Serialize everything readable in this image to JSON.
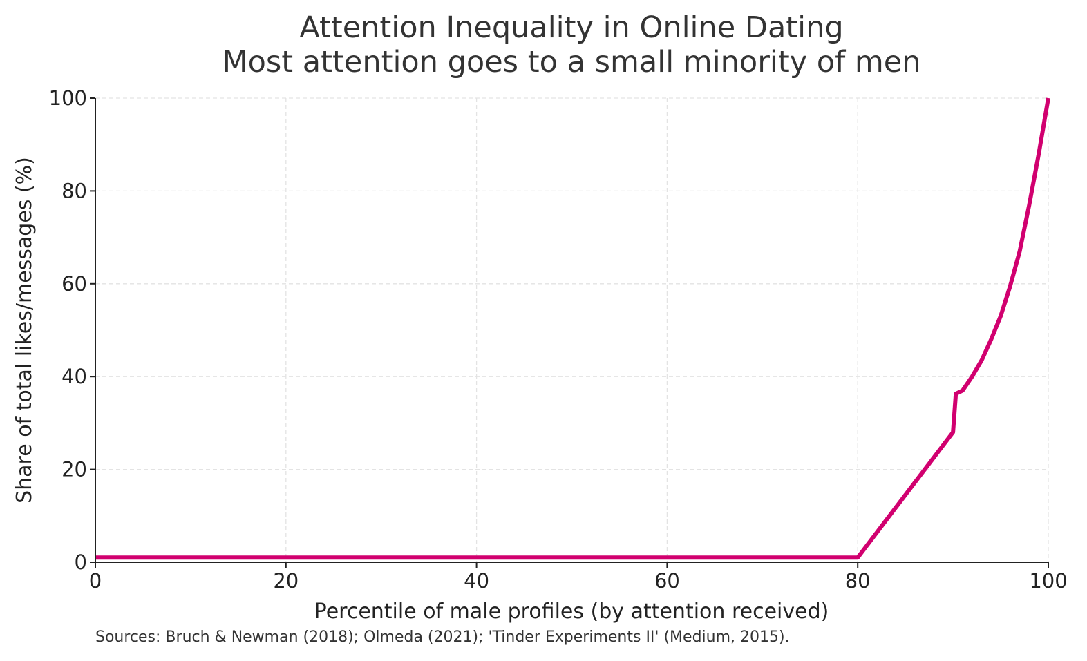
{
  "chart_data": {
    "type": "line",
    "title": "Attention Inequality in Online Dating",
    "subtitle": "Most attention goes to a small minority of men",
    "xlabel": "Percentile of male profiles (by attention received)",
    "ylabel": "Share of total likes/messages (%)",
    "source_note": "Sources: Bruch & Newman (2018); Olmeda (2021); 'Tinder Experiments II' (Medium, 2015).",
    "xlim": [
      0,
      100
    ],
    "ylim": [
      0,
      100
    ],
    "xticks": [
      "0",
      "20",
      "40",
      "60",
      "80",
      "100"
    ],
    "yticks": [
      "0",
      "20",
      "40",
      "60",
      "80",
      "100"
    ],
    "grid": true,
    "color": "#d1006f",
    "series": [
      {
        "x": [
          0,
          80,
          90,
          90.3,
          91,
          92,
          93,
          94,
          95,
          96,
          97,
          98,
          99,
          100
        ],
        "y": [
          1,
          1,
          28,
          36.3,
          37,
          40,
          43.5,
          48,
          53,
          59.5,
          67,
          77,
          88,
          100
        ]
      }
    ]
  }
}
